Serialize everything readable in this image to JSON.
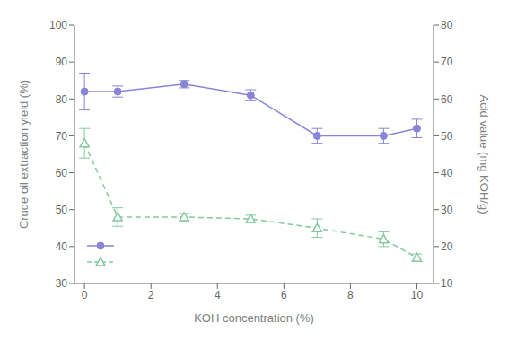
{
  "chart_data": {
    "type": "line",
    "x": [
      0,
      1,
      3,
      5,
      7,
      9,
      10
    ],
    "xlabel": "KOH concentration (%)",
    "ylabel": "Crude oil extraction yield (%)",
    "y2label": "Acid value (mg KOH/g)",
    "xlim": [
      -0.3,
      10.5
    ],
    "xticks": [
      0,
      2,
      4,
      6,
      8,
      10
    ],
    "ylim": [
      30,
      100
    ],
    "yticks": [
      30,
      40,
      50,
      60,
      70,
      80,
      90,
      100
    ],
    "y2lim": [
      10,
      80
    ],
    "y2ticks": [
      10,
      20,
      30,
      40,
      50,
      60,
      70,
      80
    ],
    "grid": false,
    "legend": "lower left",
    "series": [
      {
        "values": [
          82,
          82,
          84,
          81,
          70,
          70,
          72
        ],
        "yerr": [
          5,
          1.5,
          1,
          1.5,
          2,
          2,
          2.5
        ],
        "marker": "circle",
        "line_style": "solid"
      },
      {
        "values": [
          48,
          28,
          28,
          27.5,
          25,
          22,
          17
        ],
        "yerr": [
          4,
          2.5,
          1,
          1,
          2.5,
          2,
          1
        ],
        "axis": "y2",
        "marker": "triangle",
        "line_style": "dashed"
      }
    ]
  }
}
